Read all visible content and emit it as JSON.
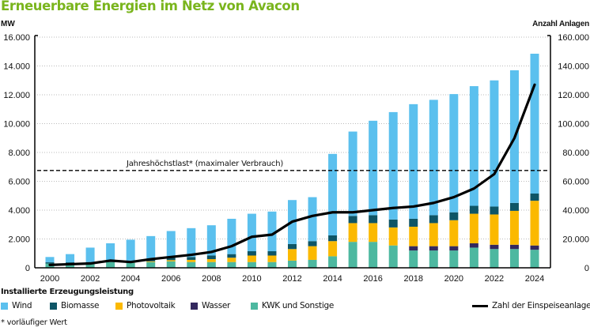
{
  "title": "Erneuerbare Energien im Netz von Avacon",
  "left_axis_label": "MW",
  "right_axis_label": "Anzahl Anlagen",
  "legend_title": "Installierte Erzeugungsleistung",
  "footnote": "* vorläufiger Wert",
  "colors": {
    "Wind": "#5bc0ee",
    "Biomasse": "#0e5566",
    "Photovoltaik": "#fbb900",
    "Wasser": "#33285e",
    "KWK und Sonstige": "#4db8a0",
    "line": "#000000",
    "grid": "#bbbbbb"
  },
  "chart_data": {
    "type": "bar",
    "stacked": true,
    "title": "Erneuerbare Energien im Netz von Avacon",
    "xlabel": "",
    "ylabel": "MW",
    "y2label": "Anzahl Anlagen",
    "ylim": [
      0,
      16000
    ],
    "y2lim": [
      0,
      160000
    ],
    "yticks": [
      "0",
      "2.000",
      "4.000",
      "6.000",
      "8.000",
      "10.000",
      "12.000",
      "14.000",
      "16.000"
    ],
    "y2ticks": [
      "0",
      "20.000",
      "40.000",
      "60.000",
      "80.000",
      "100.000",
      "120.000",
      "140.000",
      "160.000"
    ],
    "grid": true,
    "x": [
      2000,
      2001,
      2002,
      2003,
      2004,
      2005,
      2006,
      2007,
      2008,
      2009,
      2010,
      2011,
      2012,
      2013,
      2014,
      2015,
      2016,
      2017,
      2018,
      2019,
      2020,
      2021,
      2022,
      2023,
      2024
    ],
    "xtick_labels": [
      "2000",
      "2002",
      "2004",
      "2006",
      "2008",
      "2010",
      "2012",
      "2014",
      "2016",
      "2018",
      "2020",
      "2022",
      "2024"
    ],
    "series": [
      {
        "name": "KWK und Sonstige",
        "values": [
          300,
          300,
          300,
          400,
          350,
          400,
          450,
          400,
          400,
          400,
          400,
          400,
          500,
          550,
          800,
          1800,
          1800,
          1550,
          1200,
          1200,
          1200,
          1400,
          1300,
          1300,
          1250
        ]
      },
      {
        "name": "Wasser",
        "values": [
          0,
          0,
          0,
          0,
          0,
          0,
          0,
          0,
          0,
          0,
          0,
          0,
          0,
          0,
          0,
          0,
          0,
          0,
          300,
          300,
          300,
          300,
          300,
          300,
          300
        ]
      },
      {
        "name": "Photovoltaik",
        "values": [
          0,
          0,
          0,
          0,
          20,
          50,
          80,
          150,
          200,
          300,
          450,
          450,
          800,
          950,
          1050,
          1300,
          1300,
          1250,
          1350,
          1600,
          1800,
          2050,
          2100,
          2350,
          3100
        ]
      },
      {
        "name": "Biomasse",
        "values": [
          80,
          80,
          100,
          100,
          130,
          150,
          170,
          200,
          250,
          250,
          300,
          300,
          350,
          350,
          400,
          500,
          550,
          550,
          550,
          550,
          550,
          550,
          550,
          550,
          500
        ]
      },
      {
        "name": "Wind",
        "values": [
          370,
          570,
          1000,
          1200,
          1450,
          1600,
          1850,
          2000,
          2100,
          2450,
          2600,
          2750,
          3050,
          3050,
          5650,
          5850,
          6550,
          7450,
          7950,
          8000,
          8200,
          8300,
          8750,
          9200,
          9700
        ]
      }
    ],
    "line_series": {
      "name": "Zahl der Einspeiseanlagen",
      "axis": "right",
      "values": [
        2000,
        2500,
        3000,
        5000,
        4000,
        6000,
        7500,
        9000,
        11000,
        15000,
        21500,
        23000,
        32000,
        36000,
        38500,
        38500,
        40000,
        41500,
        42500,
        45000,
        49000,
        55000,
        65000,
        90000,
        127000
      ]
    },
    "reference_line": {
      "label": "Jahreshöchstlast* (maximaler Verbrauch)",
      "value": 6750,
      "style": "dashed"
    },
    "legend": {
      "placement": "bottom",
      "items": [
        "Wind",
        "Biomasse",
        "Photovoltaik",
        "Wasser",
        "KWK und Sonstige",
        "Zahl der Einspeiseanlagen"
      ]
    }
  }
}
